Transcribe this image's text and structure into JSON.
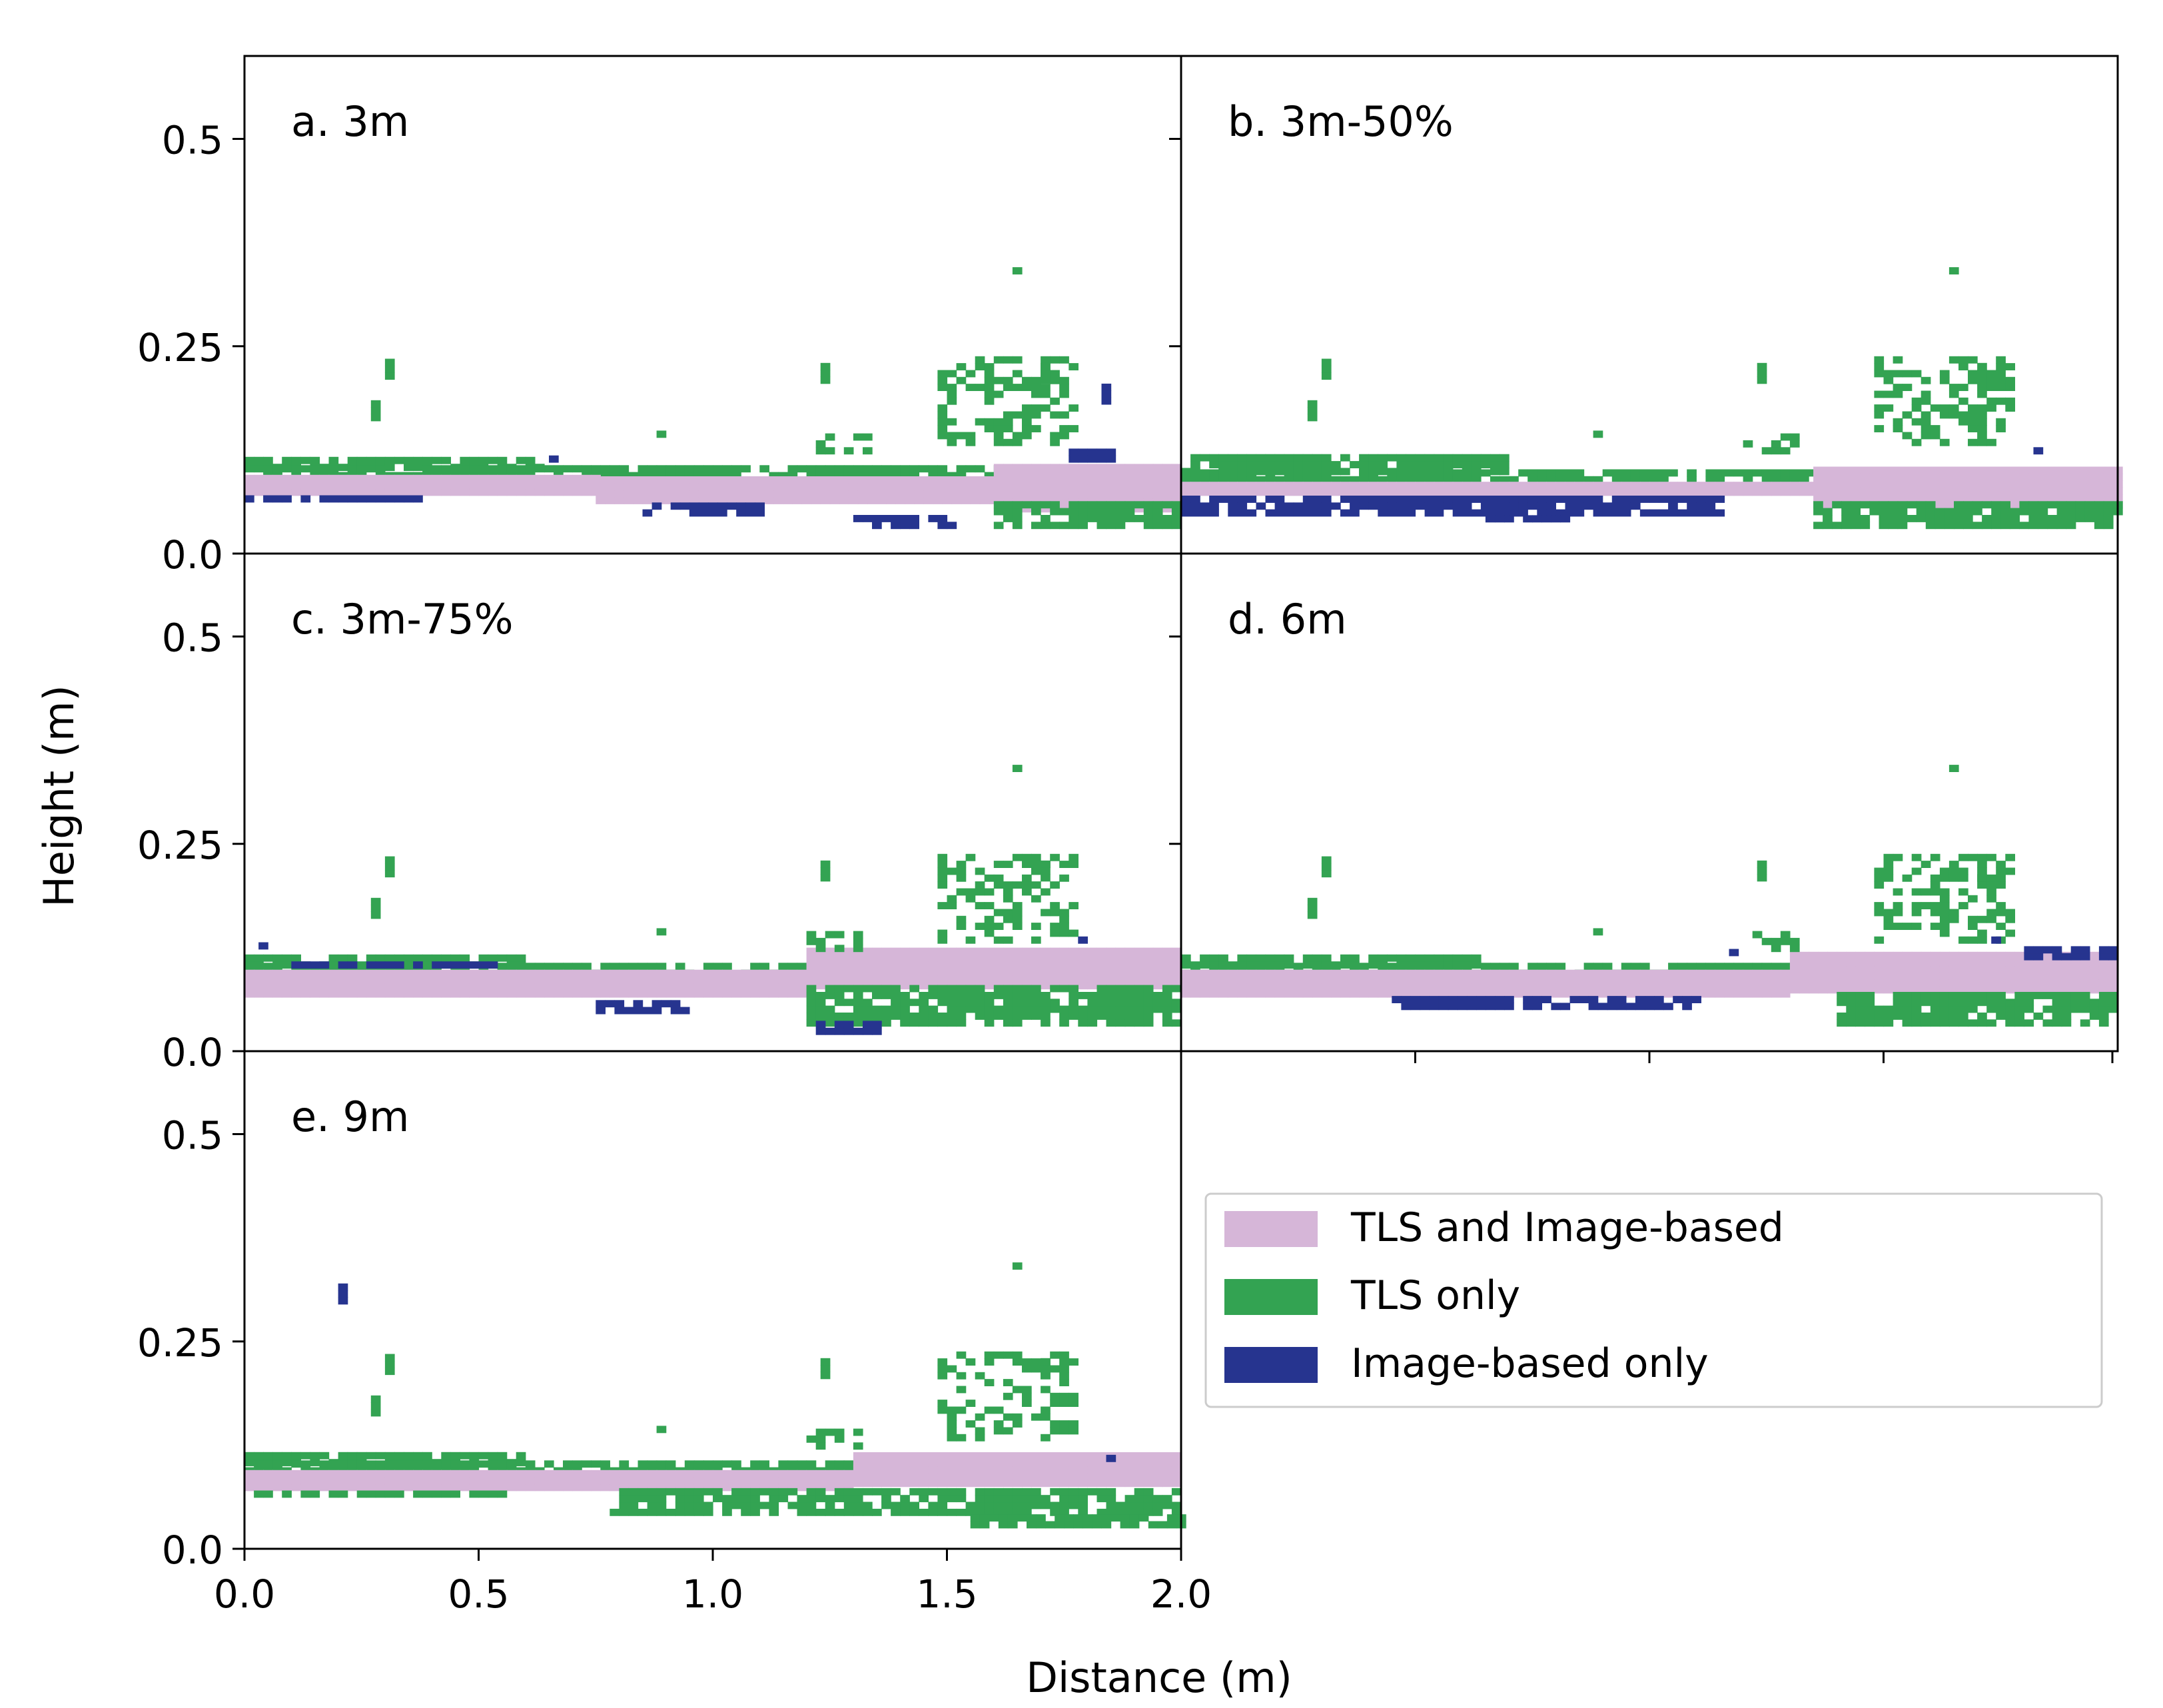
{
  "figure": {
    "xlabel": "Distance (m)",
    "ylabel": "Height (m)"
  },
  "colors": {
    "both": "#d6b6d8",
    "tls_only": "#33a352",
    "image_only": "#26348f",
    "axis": "#000000",
    "background": "#ffffff"
  },
  "legend": {
    "placement": "lower-right empty panel",
    "entries": [
      {
        "key": "both",
        "label": "TLS and Image-based"
      },
      {
        "key": "tls_only",
        "label": "TLS only"
      },
      {
        "key": "image_only",
        "label": "Image-based only"
      }
    ]
  },
  "chart_data": [
    {
      "type": "heatmap",
      "panel": "a. 3m",
      "xlabel": "",
      "ylabel": "Height (m)",
      "xlim": [
        0,
        2.0
      ],
      "ylim": [
        0,
        0.6
      ],
      "yticks": [
        "0.0",
        "0.25",
        "0.5"
      ],
      "xticks": [],
      "regions": [
        {
          "cls": "tls_only",
          "x": [
            0.0,
            0.64
          ],
          "y": [
            0.1,
            0.115
          ]
        },
        {
          "cls": "tls_only",
          "x": [
            0.0,
            2.0
          ],
          "y": [
            0.09,
            0.1
          ]
        },
        {
          "cls": "both",
          "x": [
            0.0,
            0.75
          ],
          "y": [
            0.07,
            0.09
          ]
        },
        {
          "cls": "both",
          "x": [
            0.75,
            1.6
          ],
          "y": [
            0.06,
            0.085
          ]
        },
        {
          "cls": "both",
          "x": [
            1.6,
            2.0
          ],
          "y": [
            0.05,
            0.1
          ]
        },
        {
          "cls": "image_only",
          "x": [
            0.0,
            0.4
          ],
          "y": [
            0.062,
            0.07
          ]
        },
        {
          "cls": "image_only",
          "x": [
            0.85,
            1.1
          ],
          "y": [
            0.045,
            0.06
          ]
        },
        {
          "cls": "image_only",
          "x": [
            1.3,
            1.52
          ],
          "y": [
            0.03,
            0.045
          ]
        },
        {
          "cls": "tls_only",
          "x": [
            1.6,
            2.0
          ],
          "y": [
            0.03,
            0.06
          ]
        },
        {
          "cls": "tls_only",
          "x": [
            1.48,
            1.78
          ],
          "y": [
            0.13,
            0.23
          ]
        },
        {
          "cls": "tls_only",
          "x": [
            1.22,
            1.34
          ],
          "y": [
            0.12,
            0.14
          ]
        },
        {
          "cls": "image_only",
          "x": [
            1.76,
            1.86
          ],
          "y": [
            0.11,
            0.125
          ]
        }
      ],
      "points": [
        {
          "cls": "tls_only",
          "x": 0.3,
          "y": 0.21
        },
        {
          "cls": "tls_only",
          "x": 0.27,
          "y": 0.16
        },
        {
          "cls": "tls_only",
          "x": 0.88,
          "y": 0.14
        },
        {
          "cls": "tls_only",
          "x": 1.64,
          "y": 0.337
        },
        {
          "cls": "tls_only",
          "x": 1.23,
          "y": 0.205
        },
        {
          "cls": "tls_only",
          "x": 1.7,
          "y": 0.205
        },
        {
          "cls": "image_only",
          "x": 1.83,
          "y": 0.18
        },
        {
          "cls": "image_only",
          "x": 0.65,
          "y": 0.11
        }
      ]
    },
    {
      "type": "heatmap",
      "panel": "b. 3m-50%",
      "xlabel": "",
      "ylabel": "",
      "xlim": [
        0,
        2.0
      ],
      "ylim": [
        0,
        0.6
      ],
      "yticks": [],
      "xticks": [],
      "regions": [
        {
          "cls": "tls_only",
          "x": [
            0.0,
            0.7
          ],
          "y": [
            0.095,
            0.115
          ]
        },
        {
          "cls": "tls_only",
          "x": [
            0.0,
            2.0
          ],
          "y": [
            0.085,
            0.095
          ]
        },
        {
          "cls": "both",
          "x": [
            0.0,
            1.35
          ],
          "y": [
            0.07,
            0.085
          ]
        },
        {
          "cls": "both",
          "x": [
            1.35,
            2.0
          ],
          "y": [
            0.055,
            0.1
          ]
        },
        {
          "cls": "image_only",
          "x": [
            0.0,
            1.15
          ],
          "y": [
            0.045,
            0.065
          ]
        },
        {
          "cls": "image_only",
          "x": [
            0.65,
            0.85
          ],
          "y": [
            0.038,
            0.046
          ]
        },
        {
          "cls": "tls_only",
          "x": [
            1.35,
            2.0
          ],
          "y": [
            0.03,
            0.06
          ]
        },
        {
          "cls": "tls_only",
          "x": [
            1.48,
            1.78
          ],
          "y": [
            0.13,
            0.23
          ]
        },
        {
          "cls": "tls_only",
          "x": [
            1.2,
            1.32
          ],
          "y": [
            0.12,
            0.14
          ]
        }
      ],
      "points": [
        {
          "cls": "tls_only",
          "x": 0.3,
          "y": 0.21
        },
        {
          "cls": "tls_only",
          "x": 0.27,
          "y": 0.16
        },
        {
          "cls": "tls_only",
          "x": 0.88,
          "y": 0.14
        },
        {
          "cls": "tls_only",
          "x": 1.64,
          "y": 0.337
        },
        {
          "cls": "tls_only",
          "x": 1.23,
          "y": 0.205
        },
        {
          "cls": "tls_only",
          "x": 1.7,
          "y": 0.205
        },
        {
          "cls": "image_only",
          "x": 1.82,
          "y": 0.12
        }
      ]
    },
    {
      "type": "heatmap",
      "panel": "c. 3m-75%",
      "xlabel": "",
      "ylabel": "Height (m)",
      "xlim": [
        0,
        2.0
      ],
      "ylim": [
        0,
        0.6
      ],
      "yticks": [
        "0.0",
        "0.25",
        "0.5"
      ],
      "xticks": [],
      "regions": [
        {
          "cls": "tls_only",
          "x": [
            0.0,
            0.6
          ],
          "y": [
            0.1,
            0.115
          ]
        },
        {
          "cls": "tls_only",
          "x": [
            0.0,
            1.7
          ],
          "y": [
            0.09,
            0.1
          ]
        },
        {
          "cls": "both",
          "x": [
            0.0,
            1.2
          ],
          "y": [
            0.065,
            0.09
          ]
        },
        {
          "cls": "both",
          "x": [
            1.2,
            2.0
          ],
          "y": [
            0.075,
            0.12
          ]
        },
        {
          "cls": "tls_only",
          "x": [
            1.2,
            2.0
          ],
          "y": [
            0.03,
            0.075
          ]
        },
        {
          "cls": "image_only",
          "x": [
            0.1,
            0.55
          ],
          "y": [
            0.1,
            0.108
          ]
        },
        {
          "cls": "image_only",
          "x": [
            0.73,
            0.95
          ],
          "y": [
            0.045,
            0.06
          ]
        },
        {
          "cls": "image_only",
          "x": [
            1.22,
            1.36
          ],
          "y": [
            0.02,
            0.03
          ]
        },
        {
          "cls": "tls_only",
          "x": [
            1.48,
            1.78
          ],
          "y": [
            0.13,
            0.23
          ]
        },
        {
          "cls": "tls_only",
          "x": [
            1.2,
            1.32
          ],
          "y": [
            0.12,
            0.14
          ]
        }
      ],
      "points": [
        {
          "cls": "tls_only",
          "x": 0.3,
          "y": 0.21
        },
        {
          "cls": "tls_only",
          "x": 0.27,
          "y": 0.16
        },
        {
          "cls": "tls_only",
          "x": 0.88,
          "y": 0.14
        },
        {
          "cls": "tls_only",
          "x": 1.64,
          "y": 0.337
        },
        {
          "cls": "tls_only",
          "x": 1.23,
          "y": 0.205
        },
        {
          "cls": "tls_only",
          "x": 1.7,
          "y": 0.205
        },
        {
          "cls": "image_only",
          "x": 0.03,
          "y": 0.123
        },
        {
          "cls": "image_only",
          "x": 1.78,
          "y": 0.13
        }
      ]
    },
    {
      "type": "heatmap",
      "panel": "d. 6m",
      "xlabel": "",
      "ylabel": "",
      "xlim": [
        0,
        2.0
      ],
      "ylim": [
        0,
        0.6
      ],
      "yticks": [],
      "xticks": [],
      "regions": [
        {
          "cls": "tls_only",
          "x": [
            0.0,
            0.64
          ],
          "y": [
            0.1,
            0.115
          ]
        },
        {
          "cls": "tls_only",
          "x": [
            0.0,
            1.7
          ],
          "y": [
            0.09,
            0.1
          ]
        },
        {
          "cls": "both",
          "x": [
            0.0,
            1.3
          ],
          "y": [
            0.065,
            0.09
          ]
        },
        {
          "cls": "both",
          "x": [
            1.3,
            2.0
          ],
          "y": [
            0.07,
            0.115
          ]
        },
        {
          "cls": "tls_only",
          "x": [
            1.4,
            2.0
          ],
          "y": [
            0.03,
            0.07
          ]
        },
        {
          "cls": "image_only",
          "x": [
            0.45,
            1.1
          ],
          "y": [
            0.05,
            0.062
          ]
        },
        {
          "cls": "image_only",
          "x": [
            1.8,
            2.0
          ],
          "y": [
            0.11,
            0.125
          ]
        },
        {
          "cls": "tls_only",
          "x": [
            1.48,
            1.78
          ],
          "y": [
            0.13,
            0.23
          ]
        },
        {
          "cls": "tls_only",
          "x": [
            1.2,
            1.32
          ],
          "y": [
            0.12,
            0.14
          ]
        }
      ],
      "points": [
        {
          "cls": "tls_only",
          "x": 0.3,
          "y": 0.21
        },
        {
          "cls": "tls_only",
          "x": 0.27,
          "y": 0.16
        },
        {
          "cls": "tls_only",
          "x": 0.88,
          "y": 0.14
        },
        {
          "cls": "tls_only",
          "x": 1.64,
          "y": 0.337
        },
        {
          "cls": "tls_only",
          "x": 1.23,
          "y": 0.205
        },
        {
          "cls": "tls_only",
          "x": 1.7,
          "y": 0.205
        },
        {
          "cls": "image_only",
          "x": 1.17,
          "y": 0.115
        },
        {
          "cls": "image_only",
          "x": 1.73,
          "y": 0.13
        }
      ]
    },
    {
      "type": "heatmap",
      "panel": "e. 9m",
      "xlabel": "Distance (m)",
      "ylabel": "Height (m)",
      "xlim": [
        0,
        2.0
      ],
      "ylim": [
        0,
        0.6
      ],
      "yticks": [
        "0.0",
        "0.25",
        "0.5"
      ],
      "xticks": [
        "0.0",
        "0.5",
        "1.0",
        "1.5",
        "2.0"
      ],
      "regions": [
        {
          "cls": "tls_only",
          "x": [
            0.0,
            0.6
          ],
          "y": [
            0.1,
            0.115
          ]
        },
        {
          "cls": "tls_only",
          "x": [
            0.0,
            1.9
          ],
          "y": [
            0.09,
            0.1
          ]
        },
        {
          "cls": "both",
          "x": [
            0.0,
            1.3
          ],
          "y": [
            0.07,
            0.09
          ]
        },
        {
          "cls": "both",
          "x": [
            1.3,
            2.0
          ],
          "y": [
            0.075,
            0.11
          ]
        },
        {
          "cls": "tls_only",
          "x": [
            0.0,
            0.55
          ],
          "y": [
            0.062,
            0.07
          ]
        },
        {
          "cls": "tls_only",
          "x": [
            0.78,
            2.0
          ],
          "y": [
            0.04,
            0.07
          ]
        },
        {
          "cls": "tls_only",
          "x": [
            1.55,
            2.0
          ],
          "y": [
            0.025,
            0.04
          ]
        },
        {
          "cls": "tls_only",
          "x": [
            1.48,
            1.78
          ],
          "y": [
            0.13,
            0.23
          ]
        },
        {
          "cls": "tls_only",
          "x": [
            1.2,
            1.32
          ],
          "y": [
            0.12,
            0.14
          ]
        }
      ],
      "points": [
        {
          "cls": "tls_only",
          "x": 0.3,
          "y": 0.21
        },
        {
          "cls": "tls_only",
          "x": 0.27,
          "y": 0.16
        },
        {
          "cls": "tls_only",
          "x": 0.88,
          "y": 0.14
        },
        {
          "cls": "tls_only",
          "x": 1.64,
          "y": 0.337
        },
        {
          "cls": "tls_only",
          "x": 1.23,
          "y": 0.205
        },
        {
          "cls": "tls_only",
          "x": 1.7,
          "y": 0.205
        },
        {
          "cls": "image_only",
          "x": 0.2,
          "y": 0.295
        },
        {
          "cls": "image_only",
          "x": 1.84,
          "y": 0.105
        }
      ]
    }
  ]
}
